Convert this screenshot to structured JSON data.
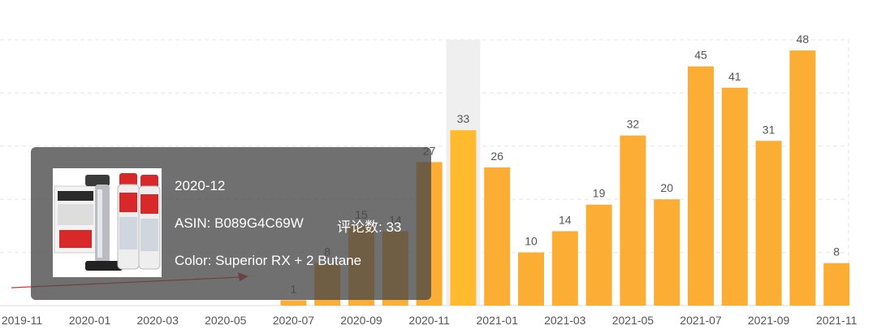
{
  "colors": {
    "bar": "#FBAE33",
    "bar_active": "#FFBA2E",
    "highlight": "#EFEFEF",
    "grid": "#E6E6E6",
    "label": "#555555",
    "tooltip_bg": "rgba(72,72,72,0.78)",
    "arrow": "#E8302A"
  },
  "chart_data": {
    "type": "bar",
    "categories": [
      "2019-11",
      "2019-12",
      "2020-01",
      "2020-02",
      "2020-03",
      "2020-04",
      "2020-05",
      "2020-06",
      "2020-07",
      "2020-08",
      "2020-09",
      "2020-10",
      "2020-11",
      "2020-12",
      "2021-01",
      "2021-02",
      "2021-03",
      "2021-04",
      "2021-05",
      "2021-06",
      "2021-07",
      "2021-08",
      "2021-09",
      "2021-10",
      "2021-11"
    ],
    "tick_labels": [
      "2019-11",
      "2020-01",
      "2020-03",
      "2020-05",
      "2020-07",
      "2020-09",
      "2020-11",
      "2021-01",
      "2021-03",
      "2021-05",
      "2021-07",
      "2021-09",
      "2021-11"
    ],
    "values": [
      0,
      0,
      0,
      0,
      0,
      0,
      0,
      0,
      1,
      8,
      15,
      14,
      27,
      33,
      26,
      10,
      14,
      19,
      32,
      20,
      45,
      41,
      31,
      48,
      8
    ],
    "ylim": [
      0,
      50
    ],
    "grid": true,
    "highlighted_category": "2020-12"
  },
  "tooltip": {
    "month": "2020-12",
    "asin": "ASIN: B089G4C69W",
    "reviews": "评论数: 33",
    "color": "Color: Superior RX + 2 Butane",
    "image_icon": "product-thumbnail-icon"
  }
}
